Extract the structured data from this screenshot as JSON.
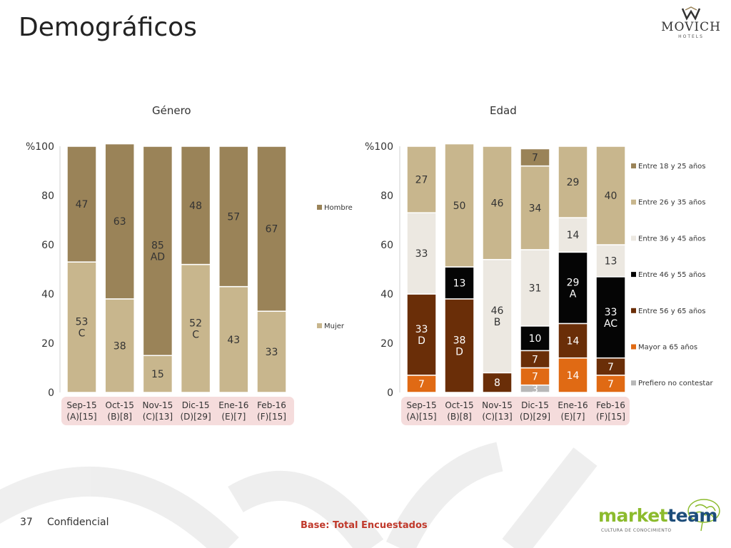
{
  "header": {
    "title": "Demográficos"
  },
  "brand_logo": {
    "word": "MOVICH",
    "sub": "HOTELS"
  },
  "footer": {
    "page_number": "37",
    "confidential": "Confidencial",
    "base": "Base: Total Encuestados"
  },
  "marketteam_logo": {
    "word_a": "market",
    "word_b": "team",
    "sub": "CULTURA DE CONOCIMIENTO"
  },
  "colors": {
    "hombre": "#9a8358",
    "mujer": "#c8b68d",
    "e18_25": "#9a8358",
    "e26_35": "#c8b68d",
    "e36_45": "#ece8e1",
    "e46_55": "#050505",
    "e56_65": "#6a2e08",
    "mayor65": "#e06a14",
    "prefiero": "#b8b8b8",
    "label_box": "#f5dcdc"
  },
  "chart_data": [
    {
      "id": "genero",
      "type": "bar",
      "stacked": true,
      "title": "Género",
      "ylabel": "%",
      "ylim": [
        0,
        100
      ],
      "yticks": [
        "0",
        "20",
        "40",
        "60",
        "80",
        "%100"
      ],
      "categories": [
        [
          "Sep-15",
          "(A)[15]"
        ],
        [
          "Oct-15",
          "(B)[8]"
        ],
        [
          "Nov-15",
          "(C)[13]"
        ],
        [
          "Dic-15",
          "(D)[29]"
        ],
        [
          "Ene-16",
          "(E)[7]"
        ],
        [
          "Feb-16",
          "(F)[15]"
        ]
      ],
      "series": [
        {
          "name": "Mujer",
          "key": "mujer",
          "values": [
            53,
            38,
            15,
            52,
            43,
            33
          ],
          "labels": [
            "53\nC",
            "38",
            "15",
            "52\nC",
            "43",
            "33"
          ]
        },
        {
          "name": "Hombre",
          "key": "hombre",
          "values": [
            47,
            63,
            85,
            48,
            57,
            67
          ],
          "labels": [
            "47",
            "63",
            "85\nAD",
            "48",
            "57",
            "67"
          ]
        }
      ],
      "legend_position": "right"
    },
    {
      "id": "edad",
      "type": "bar",
      "stacked": true,
      "title": "Edad",
      "ylabel": "%",
      "ylim": [
        0,
        100
      ],
      "yticks": [
        "0",
        "20",
        "40",
        "60",
        "80",
        "%100"
      ],
      "categories": [
        [
          "Sep-15",
          "(A)[15]"
        ],
        [
          "Oct-15",
          "(B)[8]"
        ],
        [
          "Nov-15",
          "(C)[13]"
        ],
        [
          "Dic-15",
          "(D)[29]"
        ],
        [
          "Ene-16",
          "(E)[7]"
        ],
        [
          "Feb-16",
          "(F)[15]"
        ]
      ],
      "series": [
        {
          "name": "Prefiero no contestar",
          "key": "prefiero",
          "values": [
            0,
            0,
            0,
            3,
            0,
            0
          ],
          "labels": [
            "",
            "",
            "",
            "3",
            "",
            ""
          ]
        },
        {
          "name": "Mayor a 65 años",
          "key": "mayor65",
          "values": [
            7,
            0,
            0,
            7,
            14,
            7
          ],
          "labels": [
            "7",
            "",
            "",
            "7",
            "14",
            "7"
          ]
        },
        {
          "name": "Entre 56 y 65 años",
          "key": "e56_65",
          "values": [
            33,
            38,
            8,
            7,
            14,
            7
          ],
          "labels": [
            "33\nD",
            "38\nD",
            "8",
            "7",
            "14",
            "7"
          ]
        },
        {
          "name": "Entre 46 y 55 años",
          "key": "e46_55",
          "values": [
            0,
            13,
            0,
            10,
            29,
            33
          ],
          "labels": [
            "",
            "13",
            "",
            "10",
            "29\nA",
            "33\nAC"
          ]
        },
        {
          "name": "Entre 36 y 45 años",
          "key": "e36_45",
          "values": [
            33,
            0,
            46,
            31,
            14,
            13
          ],
          "labels": [
            "33",
            "",
            "46\nB",
            "31",
            "14",
            "13"
          ]
        },
        {
          "name": "Entre 26 y 35 años",
          "key": "e26_35",
          "values": [
            27,
            50,
            46,
            34,
            29,
            40
          ],
          "labels": [
            "27",
            "50",
            "46",
            "34",
            "29",
            "40"
          ]
        },
        {
          "name": "Entre 18 y 25 años",
          "key": "e18_25",
          "values": [
            0,
            0,
            0,
            7,
            0,
            0
          ],
          "labels": [
            "",
            "",
            "",
            "7",
            "",
            ""
          ]
        }
      ],
      "legend_order": [
        "e18_25",
        "e26_35",
        "e36_45",
        "e46_55",
        "e56_65",
        "mayor65",
        "prefiero"
      ],
      "legend_position": "right"
    }
  ]
}
